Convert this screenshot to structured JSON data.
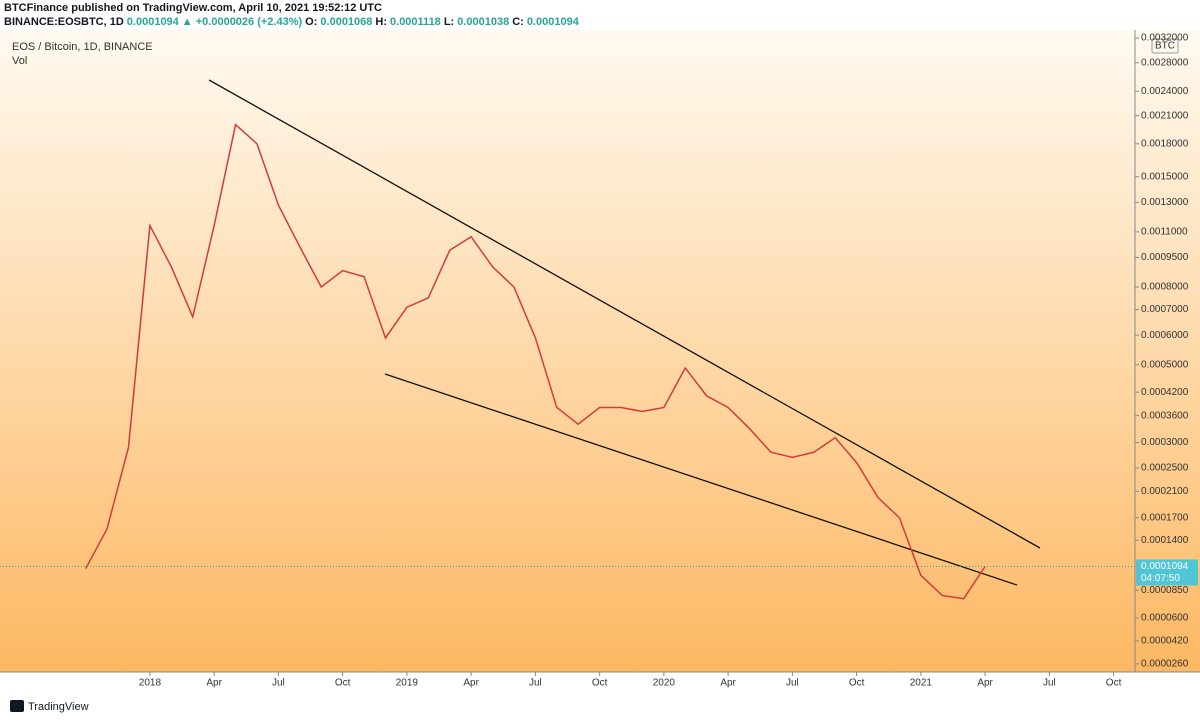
{
  "header": {
    "publisher": "BTCFinance published on TradingView.com, April 10, 2021 19:52:12 UTC",
    "symbol": "BINANCE:EOSBTC, 1D",
    "last": "0.0001094",
    "change": "▲ +0.0000026 (+2.43%)",
    "open_label": "O:",
    "open": "0.0001068",
    "high_label": "H:",
    "high": "0.0001118",
    "low_label": "L:",
    "low": "0.0001038",
    "close_label": "C:",
    "close": "0.0001094"
  },
  "footer": {
    "brand": "TradingView"
  },
  "chart_data": {
    "type": "line",
    "log_scale": true,
    "grid": false,
    "volume_label": "Vol",
    "currency": "BTC",
    "x": [
      "2017-10",
      "2017-11",
      "2017-12",
      "2018-01",
      "2018-02",
      "2018-03",
      "2018-04",
      "2018-05",
      "2018-06",
      "2018-07",
      "2018-08",
      "2018-09",
      "2018-10",
      "2018-11",
      "2018-12",
      "2019-01",
      "2019-02",
      "2019-03",
      "2019-04",
      "2019-05",
      "2019-06",
      "2019-07",
      "2019-08",
      "2019-09",
      "2019-10",
      "2019-11",
      "2019-12",
      "2020-01",
      "2020-02",
      "2020-03",
      "2020-04",
      "2020-05",
      "2020-06",
      "2020-07",
      "2020-08",
      "2020-09",
      "2020-10",
      "2020-11",
      "2020-12",
      "2021-01",
      "2021-02",
      "2021-03",
      "2021-04"
    ],
    "series": [
      {
        "name": "EOS / Bitcoin, 1D, BINANCE",
        "color": "#d23b3b",
        "values": [
          0.000107,
          0.000155,
          0.00029,
          0.00114,
          0.0009,
          0.00067,
          0.00114,
          0.002,
          0.0018,
          0.00128,
          0.00101,
          0.0008,
          0.00088,
          0.00085,
          0.00059,
          0.00071,
          0.00075,
          0.00099,
          0.00107,
          0.0009,
          0.0008,
          0.00059,
          0.00038,
          0.00034,
          0.00038,
          0.00038,
          0.00037,
          0.00038,
          0.00049,
          0.00041,
          0.00038,
          0.00033,
          0.00028,
          0.00027,
          0.00028,
          0.00031,
          0.00026,
          0.0002,
          0.00017,
          0.0001,
          8e-05,
          7.7e-05,
          0.0001094
        ]
      }
    ],
    "xlim": [
      "2017-06",
      "2021-11"
    ],
    "xticks": [
      {
        "value": "2018-01",
        "label": "2018"
      },
      {
        "value": "2018-04",
        "label": "Apr"
      },
      {
        "value": "2018-07",
        "label": "Jul"
      },
      {
        "value": "2018-10",
        "label": "Oct"
      },
      {
        "value": "2019-01",
        "label": "2019"
      },
      {
        "value": "2019-04",
        "label": "Apr"
      },
      {
        "value": "2019-07",
        "label": "Jul"
      },
      {
        "value": "2019-10",
        "label": "Oct"
      },
      {
        "value": "2020-01",
        "label": "2020"
      },
      {
        "value": "2020-04",
        "label": "Apr"
      },
      {
        "value": "2020-07",
        "label": "Jul"
      },
      {
        "value": "2020-10",
        "label": "Oct"
      },
      {
        "value": "2021-01",
        "label": "2021"
      },
      {
        "value": "2021-04",
        "label": "Apr"
      },
      {
        "value": "2021-07",
        "label": "Jul"
      },
      {
        "value": "2021-10",
        "label": "Oct"
      }
    ],
    "ylim": [
      2.2e-05,
      0.0032
    ],
    "yticks": [
      {
        "value": 0.0032,
        "label": "0.0032000"
      },
      {
        "value": 0.0028,
        "label": "0.0028000"
      },
      {
        "value": 0.0024,
        "label": "0.0024000"
      },
      {
        "value": 0.0021,
        "label": "0.0021000"
      },
      {
        "value": 0.0018,
        "label": "0.0018000"
      },
      {
        "value": 0.0015,
        "label": "0.0015000"
      },
      {
        "value": 0.0013,
        "label": "0.0013000"
      },
      {
        "value": 0.0011,
        "label": "0.0011000"
      },
      {
        "value": 0.00095,
        "label": "0.0009500"
      },
      {
        "value": 0.0008,
        "label": "0.0008000"
      },
      {
        "value": 0.0007,
        "label": "0.0007000"
      },
      {
        "value": 0.0006,
        "label": "0.0006000"
      },
      {
        "value": 0.0005,
        "label": "0.0005000"
      },
      {
        "value": 0.00042,
        "label": "0.0004200"
      },
      {
        "value": 0.00036,
        "label": "0.0003600"
      },
      {
        "value": 0.0003,
        "label": "0.0003000"
      },
      {
        "value": 0.00025,
        "label": "0.0002500"
      },
      {
        "value": 0.00021,
        "label": "0.0002100"
      },
      {
        "value": 0.00017,
        "label": "0.0001700"
      },
      {
        "value": 0.00014,
        "label": "0.0001400"
      },
      {
        "value": 8.5e-05,
        "label": "0.0000850"
      },
      {
        "value": 6e-05,
        "label": "0.0000600"
      },
      {
        "value": 4.2e-05,
        "label": "0.0000420"
      },
      {
        "value": 2.6e-05,
        "label": "0.0000260"
      }
    ],
    "price_label": {
      "value": 0.0001094,
      "label": "0.0001094"
    },
    "countdown": "04:07:50"
  }
}
